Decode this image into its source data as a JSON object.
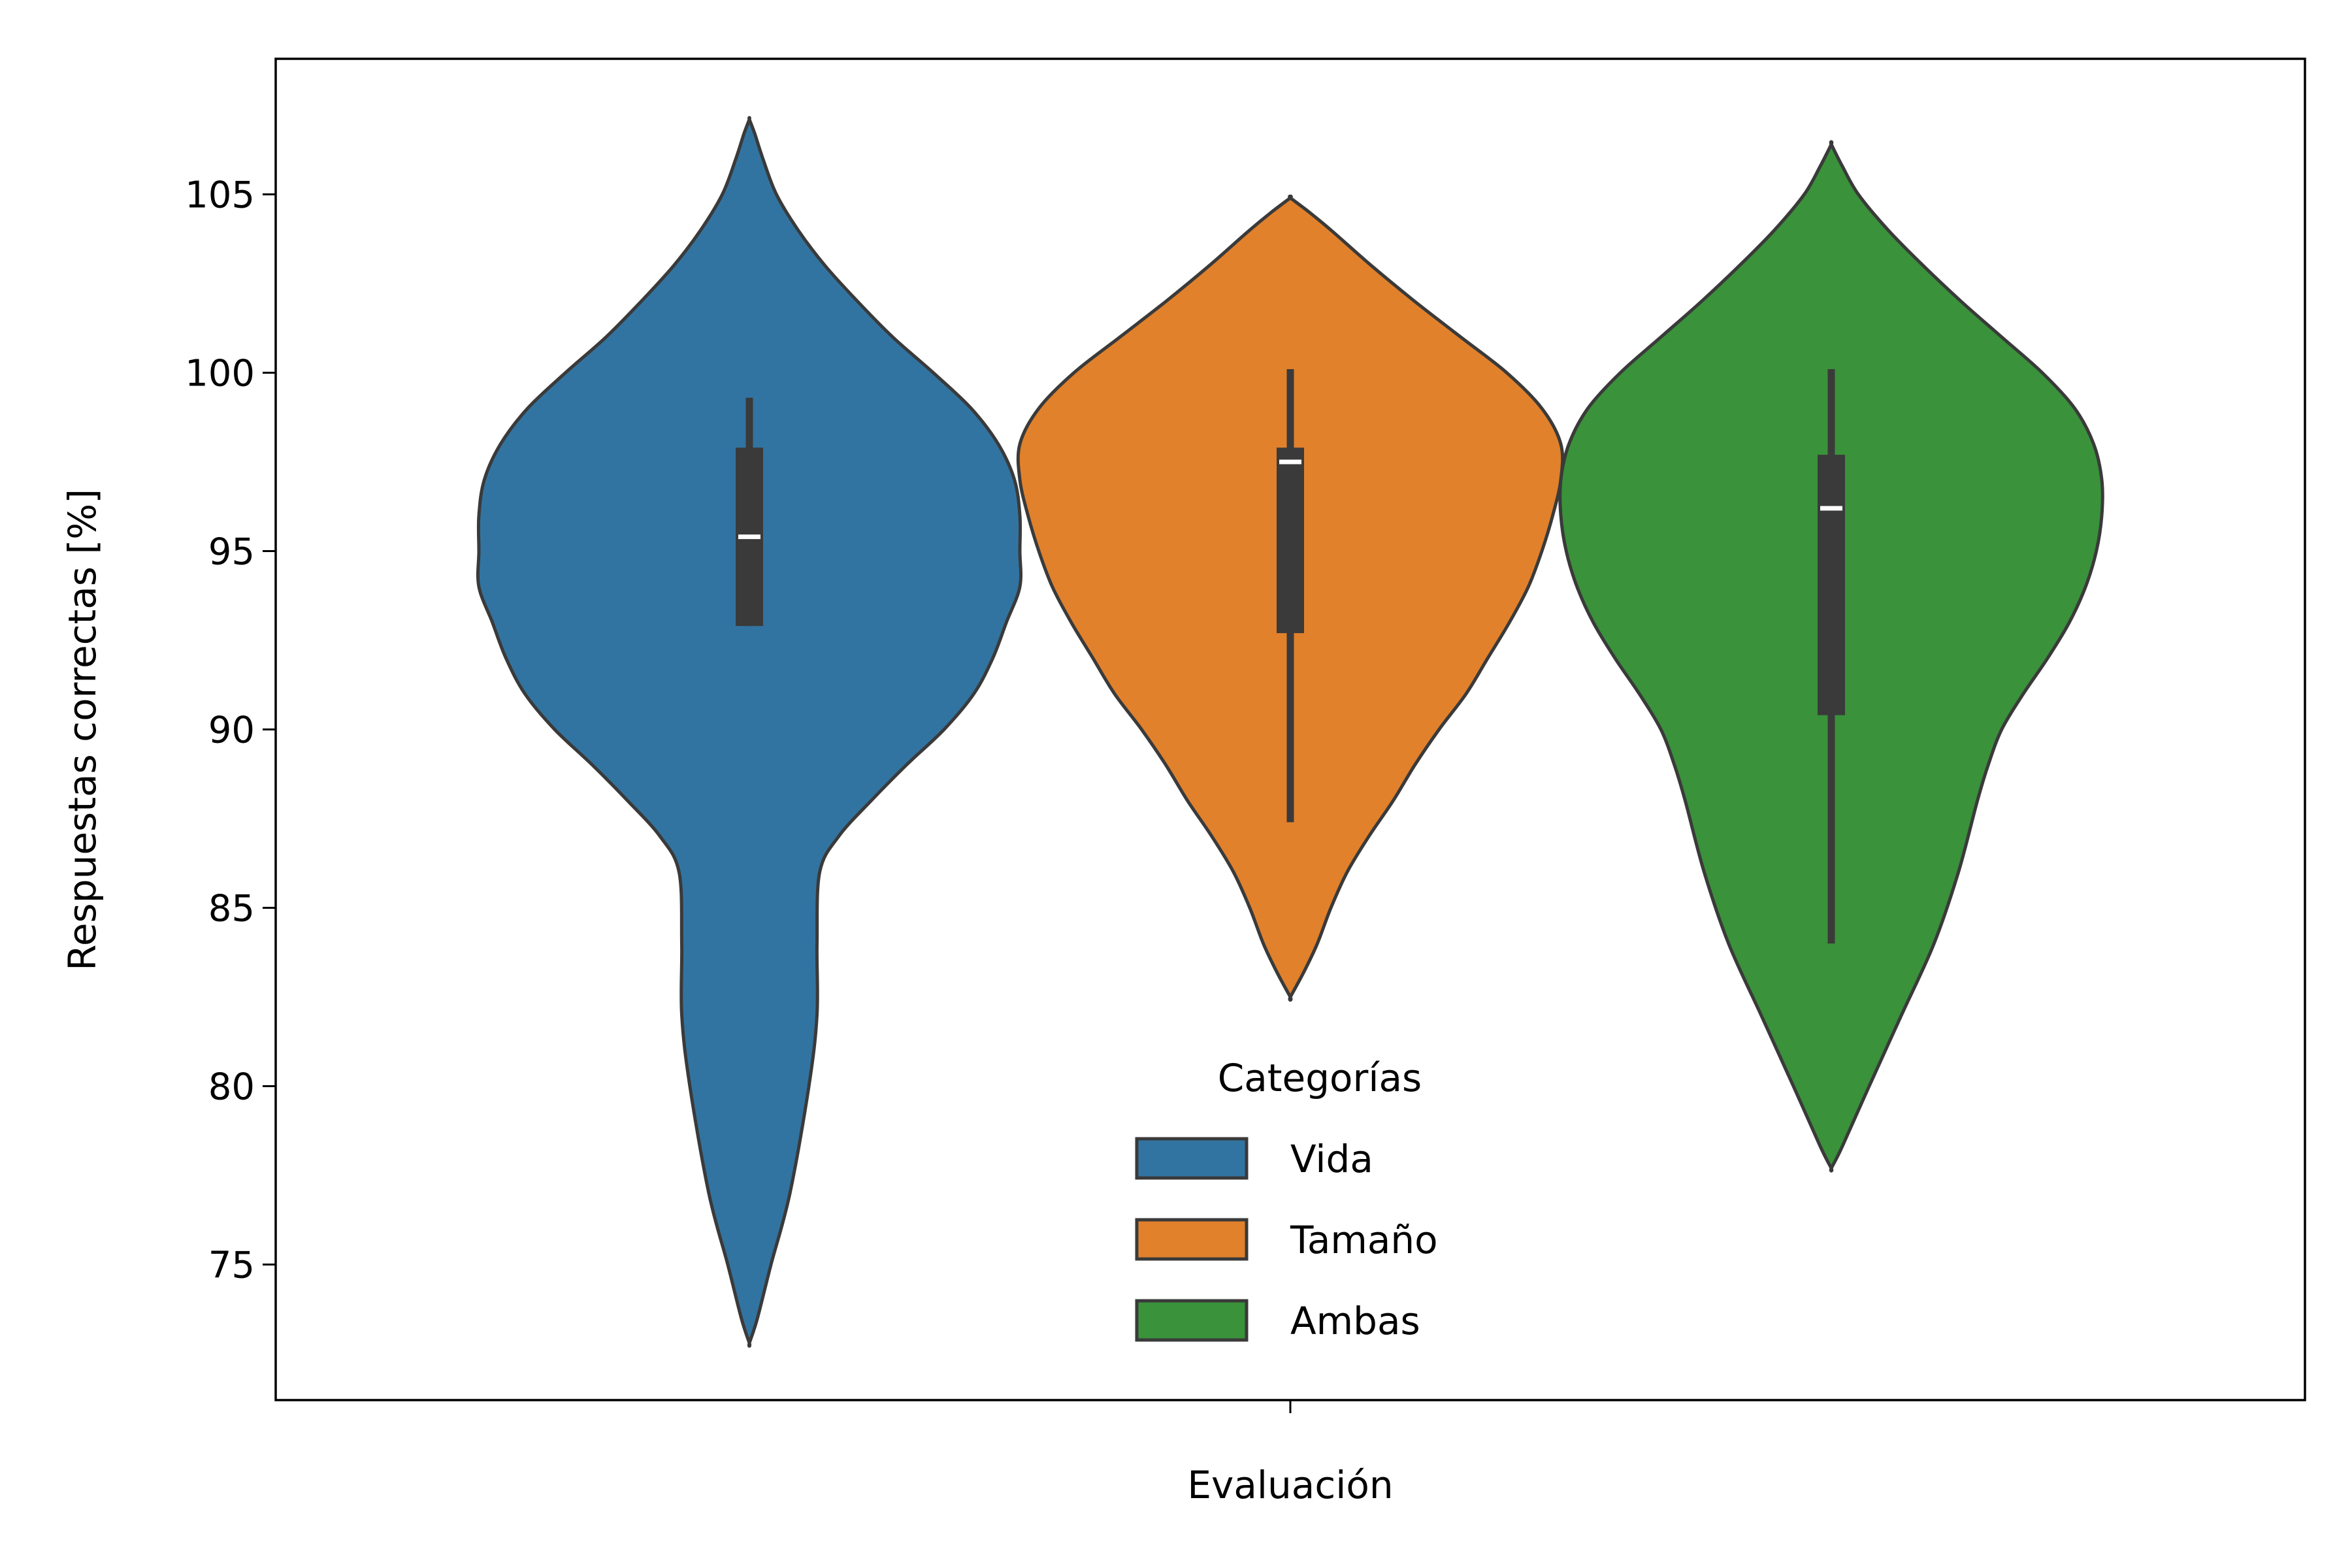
{
  "chart_data": {
    "type": "violin",
    "title": "",
    "xlabel": "Evaluación",
    "ylabel": "Respuestas correctas [%]",
    "ylim": [
      71.2,
      108.8
    ],
    "yticks": [
      75,
      80,
      85,
      90,
      95,
      100,
      105
    ],
    "yticklabels": [
      "75",
      "80",
      "85",
      "90",
      "95",
      "100",
      "105"
    ],
    "grid": false,
    "legend": {
      "title": "Categorías",
      "position": "bottom-center"
    },
    "categories": [
      ""
    ],
    "series": [
      {
        "name": "Vida",
        "color": "#3274a1",
        "range": [
          72.8,
          107.1
        ],
        "whiskers": [
          92.9,
          99.3
        ],
        "quartiles": [
          92.9,
          97.9
        ],
        "median": 95.4,
        "density": [
          [
            72.8,
            0.0
          ],
          [
            73.5,
            0.03
          ],
          [
            75,
            0.08
          ],
          [
            77,
            0.15
          ],
          [
            80,
            0.22
          ],
          [
            82,
            0.25
          ],
          [
            84,
            0.25
          ],
          [
            86,
            0.26
          ],
          [
            87,
            0.33
          ],
          [
            88,
            0.45
          ],
          [
            89,
            0.58
          ],
          [
            90,
            0.72
          ],
          [
            91,
            0.83
          ],
          [
            92,
            0.9
          ],
          [
            93,
            0.95
          ],
          [
            94,
            1.0
          ],
          [
            95,
            1.0
          ],
          [
            96,
            1.0
          ],
          [
            97,
            0.98
          ],
          [
            98,
            0.92
          ],
          [
            99,
            0.82
          ],
          [
            100,
            0.68
          ],
          [
            101,
            0.53
          ],
          [
            102,
            0.4
          ],
          [
            103,
            0.28
          ],
          [
            104,
            0.18
          ],
          [
            105,
            0.1
          ],
          [
            106,
            0.05
          ],
          [
            106.7,
            0.02
          ],
          [
            107.1,
            0.0
          ]
        ]
      },
      {
        "name": "Tamaño",
        "color": "#e1812c",
        "range": [
          82.5,
          104.9
        ],
        "whiskers": [
          87.4,
          100.1
        ],
        "quartiles": [
          92.7,
          97.9
        ],
        "median": 97.5,
        "density": [
          [
            82.5,
            0.0
          ],
          [
            83.2,
            0.05
          ],
          [
            84,
            0.1
          ],
          [
            85,
            0.15
          ],
          [
            86,
            0.21
          ],
          [
            87,
            0.29
          ],
          [
            88,
            0.38
          ],
          [
            89,
            0.46
          ],
          [
            90,
            0.55
          ],
          [
            91,
            0.65
          ],
          [
            92,
            0.73
          ],
          [
            93,
            0.81
          ],
          [
            94,
            0.88
          ],
          [
            95,
            0.93
          ],
          [
            96,
            0.97
          ],
          [
            97,
            1.0
          ],
          [
            98,
            1.0
          ],
          [
            99,
            0.93
          ],
          [
            100,
            0.8
          ],
          [
            101,
            0.63
          ],
          [
            102,
            0.46
          ],
          [
            103,
            0.3
          ],
          [
            104,
            0.15
          ],
          [
            104.5,
            0.07
          ],
          [
            104.9,
            0.0
          ]
        ]
      },
      {
        "name": "Ambas",
        "color": "#3a923a",
        "range": [
          77.7,
          106.4
        ],
        "whiskers": [
          84.0,
          100.1
        ],
        "quartiles": [
          90.4,
          97.7
        ],
        "median": 96.2,
        "density": [
          [
            77.7,
            0.0
          ],
          [
            78.3,
            0.04
          ],
          [
            80,
            0.14
          ],
          [
            82,
            0.26
          ],
          [
            84,
            0.38
          ],
          [
            86,
            0.47
          ],
          [
            88,
            0.54
          ],
          [
            89,
            0.58
          ],
          [
            90,
            0.63
          ],
          [
            91,
            0.71
          ],
          [
            92,
            0.8
          ],
          [
            93,
            0.88
          ],
          [
            94,
            0.94
          ],
          [
            95,
            0.98
          ],
          [
            96,
            1.0
          ],
          [
            97,
            1.0
          ],
          [
            98,
            0.97
          ],
          [
            99,
            0.9
          ],
          [
            100,
            0.78
          ],
          [
            101,
            0.63
          ],
          [
            102,
            0.48
          ],
          [
            103,
            0.34
          ],
          [
            104,
            0.21
          ],
          [
            105,
            0.1
          ],
          [
            105.8,
            0.04
          ],
          [
            106.4,
            0.0
          ]
        ]
      }
    ]
  }
}
